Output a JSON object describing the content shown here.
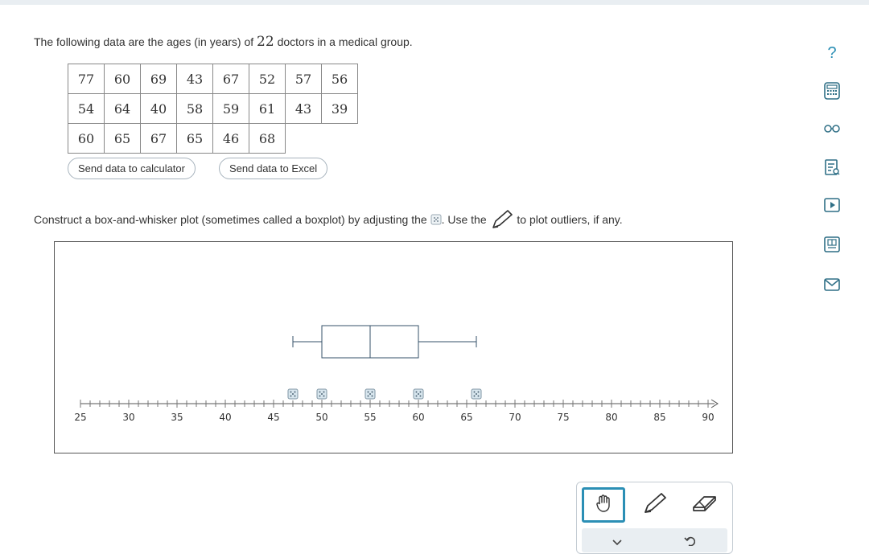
{
  "intro": {
    "before": "The following data are the ages (in years) of ",
    "count": "22",
    "after": " doctors in a medical group."
  },
  "data_rows": [
    [
      "77",
      "60",
      "69",
      "43",
      "67",
      "52",
      "57",
      "56"
    ],
    [
      "54",
      "64",
      "40",
      "58",
      "59",
      "61",
      "43",
      "39"
    ],
    [
      "60",
      "65",
      "67",
      "65",
      "46",
      "68"
    ]
  ],
  "buttons": {
    "calculator": "Send data to calculator",
    "excel": "Send data to Excel"
  },
  "instruction": {
    "part1": "Construct a box-and-whisker plot (sometimes called a boxplot) by adjusting the",
    "part2": ". Use the",
    "part3": "to plot outliers, if any."
  },
  "chart_data": {
    "type": "boxplot",
    "axis": {
      "min": 25,
      "max": 90,
      "major_ticks": [
        25,
        30,
        35,
        40,
        45,
        50,
        55,
        60,
        65,
        70,
        75,
        80,
        85,
        90
      ],
      "minor_step": 1
    },
    "box": {
      "min": 47,
      "q1": 50,
      "median": 55,
      "q3": 60,
      "max": 66
    },
    "handles": [
      47,
      50,
      55,
      60,
      66
    ]
  },
  "toolbox": {
    "active_tool": "hand"
  },
  "sidebar": [
    "help-icon",
    "calculator-icon",
    "glasses-icon",
    "reference-icon",
    "video-icon",
    "periodic-icon",
    "mail-icon"
  ],
  "colors": {
    "accent": "#2b8fb5",
    "plot_line": "#35526a",
    "handle_fill": "#d8e6ee"
  }
}
